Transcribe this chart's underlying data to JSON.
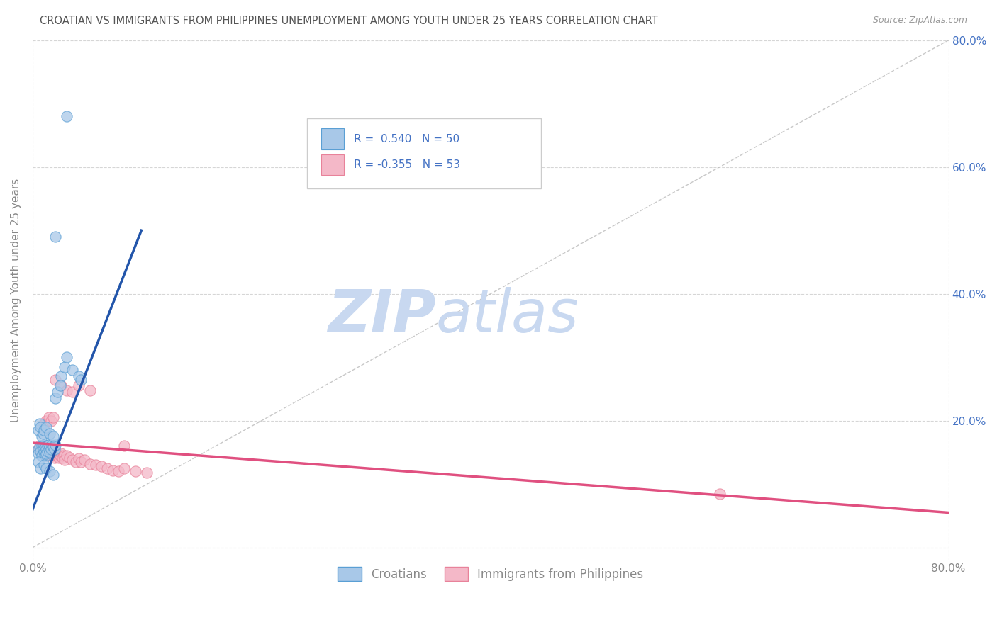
{
  "title": "CROATIAN VS IMMIGRANTS FROM PHILIPPINES UNEMPLOYMENT AMONG YOUTH UNDER 25 YEARS CORRELATION CHART",
  "source": "Source: ZipAtlas.com",
  "ylabel": "Unemployment Among Youth under 25 years",
  "watermark_zip": "ZIP",
  "watermark_atlas": "atlas",
  "xlim": [
    0.0,
    0.8
  ],
  "ylim": [
    -0.02,
    0.8
  ],
  "xticks": [
    0.0,
    0.8
  ],
  "xticklabels": [
    "0.0%",
    "80.0%"
  ],
  "yticks_right": [
    0.0,
    0.2,
    0.4,
    0.6,
    0.8
  ],
  "yticklabels_right": [
    "",
    "20.0%",
    "40.0%",
    "60.0%",
    "80.0%"
  ],
  "legend_r1": "R =  0.540",
  "legend_n1": "N = 50",
  "legend_r2": "R = -0.355",
  "legend_n2": "N = 53",
  "legend_label1": "Croatians",
  "legend_label2": "Immigrants from Philippines",
  "blue_color": "#a8c8e8",
  "pink_color": "#f4b8c8",
  "blue_edge_color": "#5a9fd4",
  "pink_edge_color": "#e8829a",
  "blue_line_color": "#2255aa",
  "pink_line_color": "#e05080",
  "blue_scatter": [
    [
      0.005,
      0.155
    ],
    [
      0.005,
      0.148
    ],
    [
      0.006,
      0.158
    ],
    [
      0.007,
      0.152
    ],
    [
      0.008,
      0.145
    ],
    [
      0.008,
      0.16
    ],
    [
      0.009,
      0.155
    ],
    [
      0.01,
      0.162
    ],
    [
      0.01,
      0.15
    ],
    [
      0.011,
      0.158
    ],
    [
      0.011,
      0.145
    ],
    [
      0.012,
      0.155
    ],
    [
      0.012,
      0.148
    ],
    [
      0.013,
      0.16
    ],
    [
      0.013,
      0.152
    ],
    [
      0.014,
      0.155
    ],
    [
      0.014,
      0.162
    ],
    [
      0.015,
      0.158
    ],
    [
      0.015,
      0.15
    ],
    [
      0.016,
      0.155
    ],
    [
      0.017,
      0.162
    ],
    [
      0.018,
      0.158
    ],
    [
      0.019,
      0.155
    ],
    [
      0.02,
      0.162
    ],
    [
      0.025,
      0.27
    ],
    [
      0.028,
      0.285
    ],
    [
      0.03,
      0.3
    ],
    [
      0.035,
      0.28
    ],
    [
      0.04,
      0.27
    ],
    [
      0.042,
      0.265
    ],
    [
      0.02,
      0.235
    ],
    [
      0.022,
      0.245
    ],
    [
      0.024,
      0.255
    ],
    [
      0.005,
      0.185
    ],
    [
      0.006,
      0.195
    ],
    [
      0.007,
      0.19
    ],
    [
      0.008,
      0.175
    ],
    [
      0.009,
      0.18
    ],
    [
      0.01,
      0.185
    ],
    [
      0.012,
      0.19
    ],
    [
      0.015,
      0.18
    ],
    [
      0.018,
      0.175
    ],
    [
      0.005,
      0.135
    ],
    [
      0.007,
      0.125
    ],
    [
      0.01,
      0.13
    ],
    [
      0.012,
      0.125
    ],
    [
      0.015,
      0.12
    ],
    [
      0.018,
      0.115
    ],
    [
      0.03,
      0.68
    ],
    [
      0.02,
      0.49
    ]
  ],
  "pink_scatter": [
    [
      0.005,
      0.155
    ],
    [
      0.006,
      0.16
    ],
    [
      0.007,
      0.155
    ],
    [
      0.008,
      0.15
    ],
    [
      0.009,
      0.158
    ],
    [
      0.01,
      0.152
    ],
    [
      0.011,
      0.155
    ],
    [
      0.012,
      0.15
    ],
    [
      0.013,
      0.145
    ],
    [
      0.014,
      0.152
    ],
    [
      0.015,
      0.148
    ],
    [
      0.016,
      0.145
    ],
    [
      0.017,
      0.15
    ],
    [
      0.018,
      0.145
    ],
    [
      0.019,
      0.142
    ],
    [
      0.02,
      0.148
    ],
    [
      0.021,
      0.145
    ],
    [
      0.022,
      0.148
    ],
    [
      0.023,
      0.142
    ],
    [
      0.024,
      0.145
    ],
    [
      0.025,
      0.148
    ],
    [
      0.026,
      0.142
    ],
    [
      0.027,
      0.145
    ],
    [
      0.028,
      0.138
    ],
    [
      0.03,
      0.145
    ],
    [
      0.032,
      0.142
    ],
    [
      0.035,
      0.138
    ],
    [
      0.038,
      0.135
    ],
    [
      0.04,
      0.14
    ],
    [
      0.042,
      0.135
    ],
    [
      0.045,
      0.138
    ],
    [
      0.05,
      0.132
    ],
    [
      0.055,
      0.13
    ],
    [
      0.06,
      0.128
    ],
    [
      0.065,
      0.125
    ],
    [
      0.07,
      0.122
    ],
    [
      0.075,
      0.12
    ],
    [
      0.08,
      0.125
    ],
    [
      0.09,
      0.12
    ],
    [
      0.1,
      0.118
    ],
    [
      0.01,
      0.195
    ],
    [
      0.012,
      0.2
    ],
    [
      0.014,
      0.205
    ],
    [
      0.016,
      0.2
    ],
    [
      0.018,
      0.205
    ],
    [
      0.02,
      0.265
    ],
    [
      0.025,
      0.255
    ],
    [
      0.03,
      0.248
    ],
    [
      0.035,
      0.245
    ],
    [
      0.04,
      0.255
    ],
    [
      0.05,
      0.248
    ],
    [
      0.08,
      0.16
    ],
    [
      0.6,
      0.085
    ]
  ],
  "blue_trend_x": [
    0.0,
    0.095
  ],
  "blue_trend_y": [
    0.06,
    0.5
  ],
  "pink_trend_x": [
    0.0,
    0.8
  ],
  "pink_trend_y": [
    0.165,
    0.055
  ],
  "ref_line_x": [
    0.0,
    0.8
  ],
  "ref_line_y": [
    0.0,
    0.8
  ],
  "bg_color": "#ffffff",
  "grid_color": "#cccccc",
  "title_color": "#555555",
  "ylabel_color": "#888888",
  "xtick_color": "#888888",
  "right_tick_color": "#4472c4",
  "watermark_color_zip": "#c8d8f0",
  "watermark_color_atlas": "#c8d8f0"
}
